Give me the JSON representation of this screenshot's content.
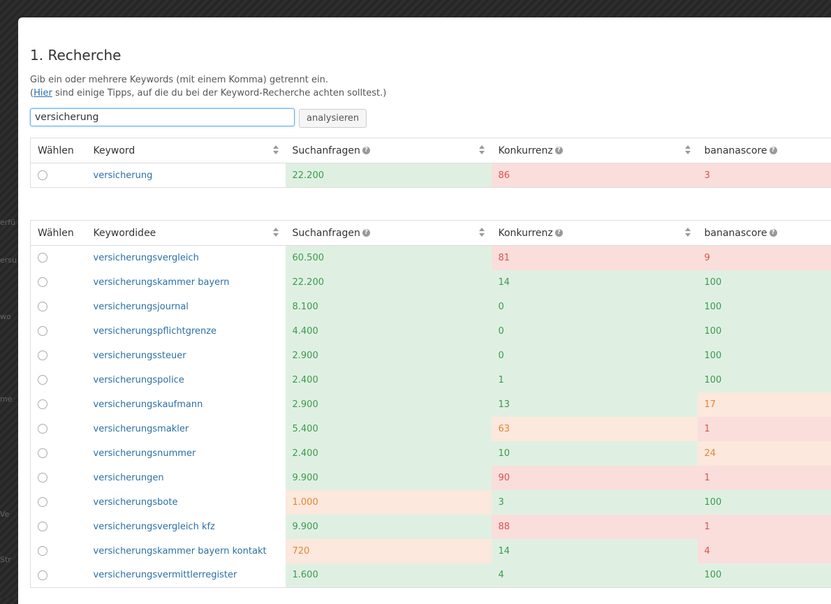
{
  "background_fragments": [
    "erfü",
    "ersu",
    "wo",
    "me",
    "Ve",
    "Str"
  ],
  "page": {
    "title": "1. Recherche",
    "intro_line1": "Gib ein oder mehrere Keywords (mit einem Komma) getrennt ein.",
    "intro_open": "(",
    "intro_link": "Hier",
    "intro_rest": " sind einige Tipps, auf die du bei der Keyword-Recherche achten solltest.)"
  },
  "search": {
    "value": "versicherung",
    "button_label": "analysieren"
  },
  "table1": {
    "headers": [
      "Wählen",
      "Keyword",
      "Suchanfragen",
      "Konkurrenz",
      "bananascore"
    ],
    "rows": [
      {
        "keyword": "versicherung",
        "searches": "22.200",
        "competition": "86",
        "score": "3",
        "colors": [
          "g",
          "r",
          "r"
        ]
      }
    ]
  },
  "table2": {
    "headers": [
      "Wählen",
      "Keywordidee",
      "Suchanfragen",
      "Konkurrenz",
      "bananascore"
    ],
    "rows": [
      {
        "keyword": "versicherungsvergleich",
        "searches": "60.500",
        "competition": "81",
        "score": "9",
        "colors": [
          "g",
          "r",
          "r"
        ]
      },
      {
        "keyword": "versicherungskammer bayern",
        "searches": "22.200",
        "competition": "14",
        "score": "100",
        "colors": [
          "g",
          "g",
          "g"
        ]
      },
      {
        "keyword": "versicherungsjournal",
        "searches": "8.100",
        "competition": "0",
        "score": "100",
        "colors": [
          "g",
          "g",
          "g"
        ]
      },
      {
        "keyword": "versicherungspflichtgrenze",
        "searches": "4.400",
        "competition": "0",
        "score": "100",
        "colors": [
          "g",
          "g",
          "g"
        ]
      },
      {
        "keyword": "versicherungssteuer",
        "searches": "2.900",
        "competition": "0",
        "score": "100",
        "colors": [
          "g",
          "g",
          "g"
        ]
      },
      {
        "keyword": "versicherungspolice",
        "searches": "2.400",
        "competition": "1",
        "score": "100",
        "colors": [
          "g",
          "g",
          "g"
        ]
      },
      {
        "keyword": "versicherungskaufmann",
        "searches": "2.900",
        "competition": "13",
        "score": "17",
        "colors": [
          "g",
          "g",
          "o"
        ]
      },
      {
        "keyword": "versicherungsmakler",
        "searches": "5.400",
        "competition": "63",
        "score": "1",
        "colors": [
          "g",
          "o",
          "r"
        ]
      },
      {
        "keyword": "versicherungsnummer",
        "searches": "2.400",
        "competition": "10",
        "score": "24",
        "colors": [
          "g",
          "g",
          "o"
        ]
      },
      {
        "keyword": "versicherungen",
        "searches": "9.900",
        "competition": "90",
        "score": "1",
        "colors": [
          "g",
          "r",
          "r"
        ]
      },
      {
        "keyword": "versicherungsbote",
        "searches": "1.000",
        "competition": "3",
        "score": "100",
        "colors": [
          "o",
          "g",
          "g"
        ]
      },
      {
        "keyword": "versicherungsvergleich kfz",
        "searches": "9.900",
        "competition": "88",
        "score": "1",
        "colors": [
          "g",
          "r",
          "r"
        ]
      },
      {
        "keyword": "versicherungskammer bayern kontakt",
        "searches": "720",
        "competition": "14",
        "score": "4",
        "colors": [
          "o",
          "g",
          "r"
        ]
      },
      {
        "keyword": "versicherungsvermittlerregister",
        "searches": "1.600",
        "competition": "4",
        "score": "100",
        "colors": [
          "g",
          "g",
          "g"
        ]
      }
    ]
  },
  "icons": {
    "help": "question-circle-icon",
    "sort": "sort-arrows-icon",
    "radio": "radio-button"
  }
}
